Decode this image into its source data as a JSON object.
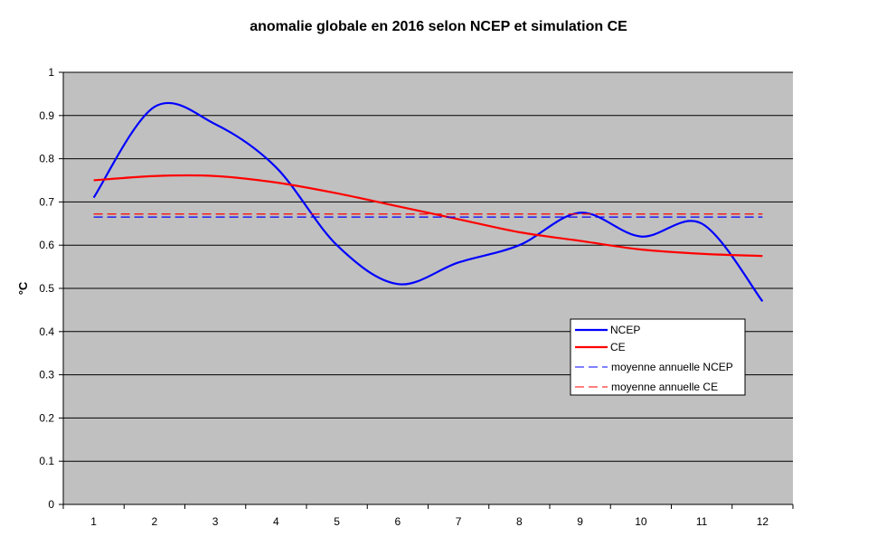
{
  "chart_data": {
    "type": "line",
    "title": "anomalie globale en 2016 selon NCEP et simulation CE",
    "xlabel": "",
    "ylabel": "°C",
    "x": [
      1,
      2,
      3,
      4,
      5,
      6,
      7,
      8,
      9,
      10,
      11,
      12
    ],
    "ylim": [
      0,
      1
    ],
    "yticks": [
      "0",
      "0.1",
      "0.2",
      "0.3",
      "0.4",
      "0.5",
      "0.6",
      "0.7",
      "0.8",
      "0.9",
      "1"
    ],
    "xticks": [
      "1",
      "2",
      "3",
      "4",
      "5",
      "6",
      "7",
      "8",
      "9",
      "10",
      "11",
      "12"
    ],
    "grid": "horizontal",
    "plot_background": "#c0c0c0",
    "legend_position": "right",
    "series": [
      {
        "name": "NCEP",
        "style": "solid",
        "color": "#0000ff",
        "values": [
          0.71,
          0.92,
          0.88,
          0.78,
          0.6,
          0.51,
          0.56,
          0.6,
          0.675,
          0.62,
          0.65,
          0.47
        ]
      },
      {
        "name": "CE",
        "style": "solid",
        "color": "#ff0000",
        "values": [
          0.75,
          0.76,
          0.76,
          0.745,
          0.72,
          0.69,
          0.66,
          0.63,
          0.61,
          0.59,
          0.58,
          0.575
        ]
      },
      {
        "name": "moyenne annuelle NCEP",
        "style": "dashed",
        "color": "#0000ff",
        "values": [
          0.665,
          0.665,
          0.665,
          0.665,
          0.665,
          0.665,
          0.665,
          0.665,
          0.665,
          0.665,
          0.665,
          0.665
        ]
      },
      {
        "name": "moyenne annuelle CE",
        "style": "dashed",
        "color": "#ff0000",
        "values": [
          0.672,
          0.672,
          0.672,
          0.672,
          0.672,
          0.672,
          0.672,
          0.672,
          0.672,
          0.672,
          0.672,
          0.672
        ]
      }
    ]
  }
}
